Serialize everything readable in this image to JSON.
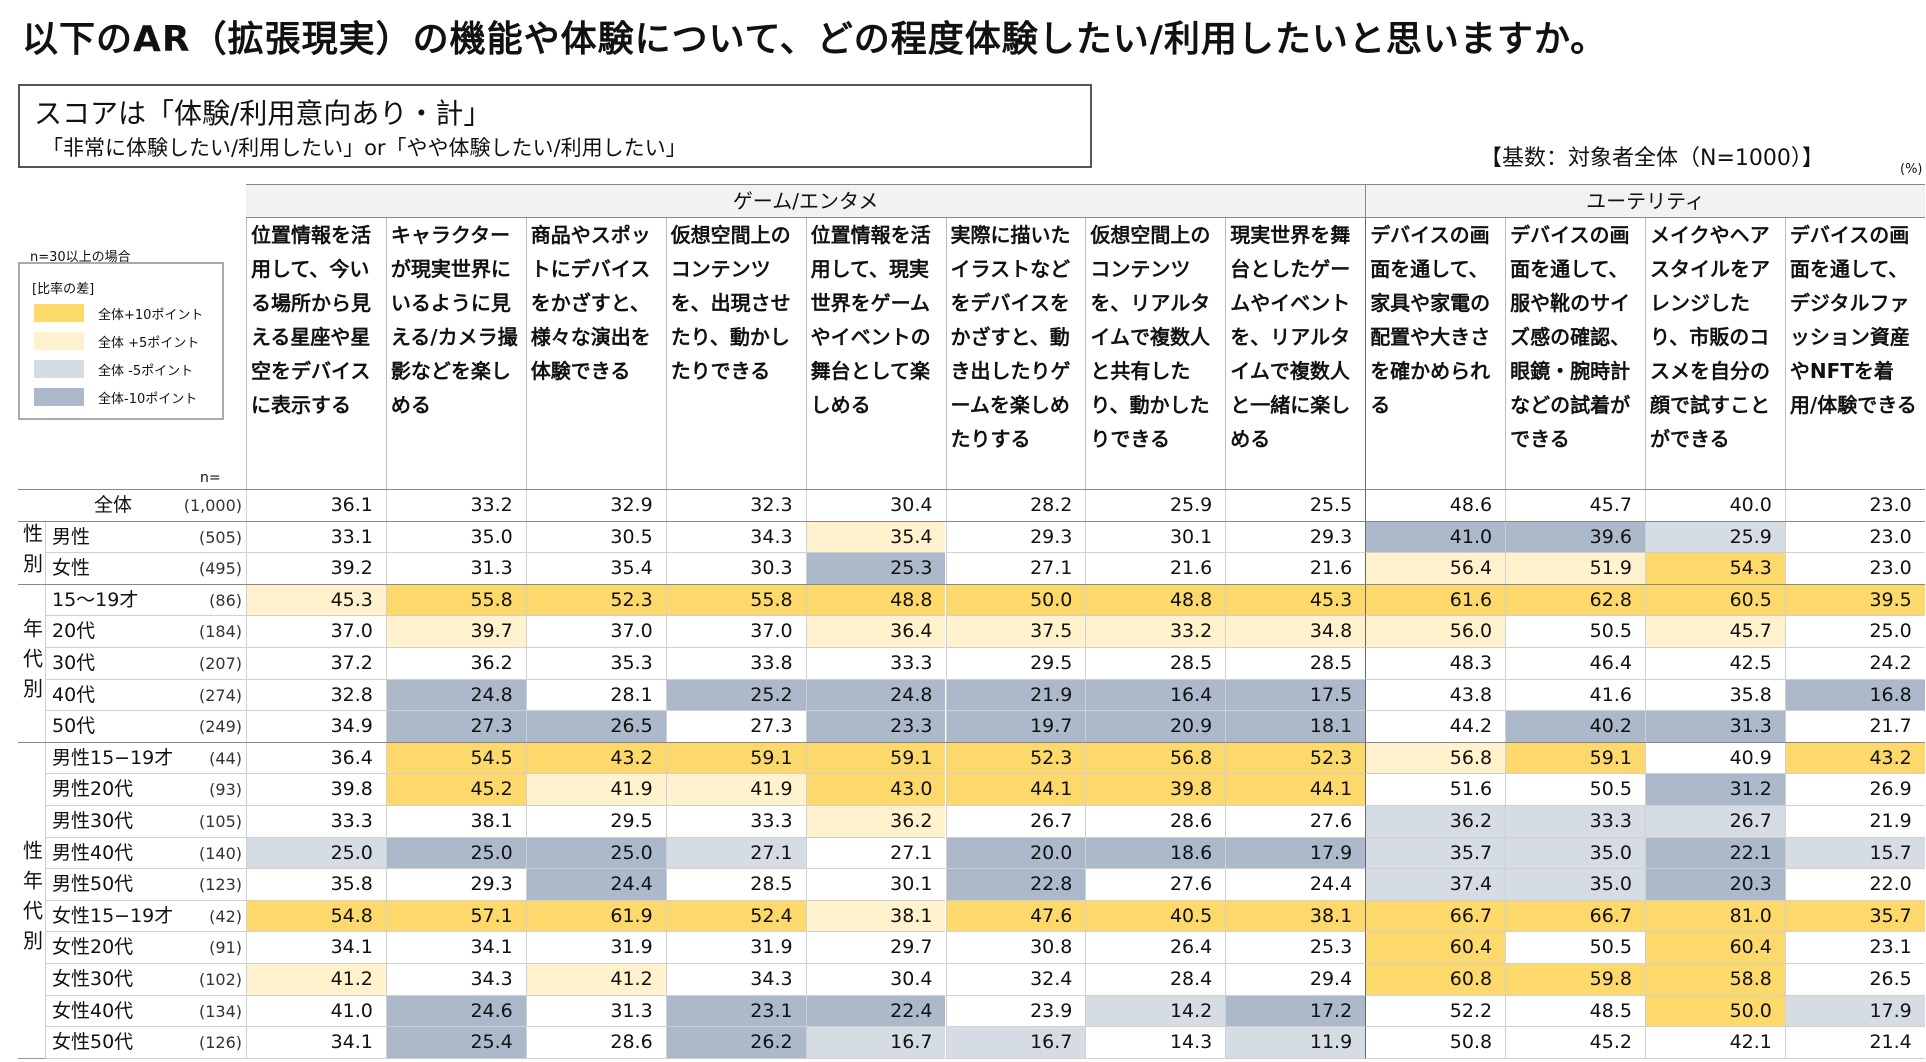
{
  "title": "以下のAR（拡張現実）の機能や体験について、どの程度体験したい/利用したいと思いますか。",
  "score_box": {
    "line1": "スコアは「体験/利用意向あり・計」",
    "line2": "「非常に体験したい/利用したい」or「やや体験したい/利用したい」"
  },
  "base_note": "【基数：対象者全体（N=1000）】",
  "unit_note": "(%)",
  "legend": {
    "condition": "n=30以上の場合",
    "title": "[比率の差]",
    "items": [
      {
        "label": "全体+10ポイント",
        "color": "#fdd86a"
      },
      {
        "label": "全体 +5ポイント",
        "color": "#fff2cc"
      },
      {
        "label": "全体 -5ポイント",
        "color": "#d6dce4"
      },
      {
        "label": "全体-10ポイント",
        "color": "#acb9ca"
      }
    ]
  },
  "n_label": "n=",
  "groups": [
    {
      "label": "ゲーム/エンタメ",
      "span": 8
    },
    {
      "label": "ユーテリティ",
      "span": 4
    }
  ],
  "columns": [
    "位置情報を活用して、今いる場所から見える星座や星空をデバイスに表示する",
    "キャラクターが現実世界にいるように見える/カメラ撮影などを楽しめる",
    "商品やスポットにデバイスをかざすと、様々な演出を体験できる",
    "仮想空間上のコンテンツを、出現させたり、動かしたりできる",
    "位置情報を活用して、現実世界をゲームやイベントの舞台として楽しめる",
    "実際に描いたイラストなどをデバイスをかざすと、動き出したりゲームを楽しめたりする",
    "仮想空間上のコンテンツを、リアルタイムで複数人と共有したり、動かしたりできる",
    "現実世界を舞台としたゲームやイベントを、リアルタイムで複数人と一緒に楽しめる",
    "デバイスの画面を通して、家具や家電の配置や大きさを確かめられる",
    "デバイスの画面を通して、服や靴のサイズ感の確認、眼鏡・腕時計などの試着ができる",
    "メイクやヘアスタイルをアレンジしたり、市販のコスメを自分の顔で試すことができる",
    "デバイスの画面を通して、デジタルファッション資産やNFTを着用/体験できる"
  ],
  "segments": [
    {
      "label": "",
      "rows": 1
    },
    {
      "label": "性別",
      "rows": 2
    },
    {
      "label": "年代別",
      "rows": 5
    },
    {
      "label": "性年代別",
      "rows": 10
    }
  ],
  "chart_data": {
    "type": "table",
    "unit": "%",
    "rows": [
      {
        "label": "全体",
        "n": "(1,000)",
        "values": [
          "36.1",
          "33.2",
          "32.9",
          "32.3",
          "30.4",
          "28.2",
          "25.9",
          "25.5",
          "48.6",
          "45.7",
          "40.0",
          "23.0"
        ],
        "hl": [
          0,
          0,
          0,
          0,
          0,
          0,
          0,
          0,
          0,
          0,
          0,
          0
        ]
      },
      {
        "label": "男性",
        "n": "(505)",
        "values": [
          "33.1",
          "35.0",
          "30.5",
          "34.3",
          "35.4",
          "29.3",
          "30.1",
          "29.3",
          "41.0",
          "39.6",
          "25.9",
          "23.0"
        ],
        "hl": [
          0,
          0,
          0,
          0,
          2,
          0,
          0,
          0,
          -2,
          -2,
          -1,
          0
        ]
      },
      {
        "label": "女性",
        "n": "(495)",
        "values": [
          "39.2",
          "31.3",
          "35.4",
          "30.3",
          "25.3",
          "27.1",
          "21.6",
          "21.6",
          "56.4",
          "51.9",
          "54.3",
          "23.0"
        ],
        "hl": [
          0,
          0,
          0,
          0,
          -2,
          0,
          0,
          0,
          2,
          2,
          1,
          0
        ]
      },
      {
        "label": "15～19才",
        "n": "(86)",
        "values": [
          "45.3",
          "55.8",
          "52.3",
          "55.8",
          "48.8",
          "50.0",
          "48.8",
          "45.3",
          "61.6",
          "62.8",
          "60.5",
          "39.5"
        ],
        "hl": [
          2,
          1,
          1,
          1,
          1,
          1,
          1,
          1,
          1,
          1,
          1,
          1
        ]
      },
      {
        "label": "20代",
        "n": "(184)",
        "values": [
          "37.0",
          "39.7",
          "37.0",
          "37.0",
          "36.4",
          "37.5",
          "33.2",
          "34.8",
          "56.0",
          "50.5",
          "45.7",
          "25.0"
        ],
        "hl": [
          0,
          2,
          0,
          0,
          2,
          2,
          2,
          2,
          2,
          0,
          2,
          0
        ]
      },
      {
        "label": "30代",
        "n": "(207)",
        "values": [
          "37.2",
          "36.2",
          "35.3",
          "33.8",
          "33.3",
          "29.5",
          "28.5",
          "28.5",
          "48.3",
          "46.4",
          "42.5",
          "24.2"
        ],
        "hl": [
          0,
          0,
          0,
          0,
          0,
          0,
          0,
          0,
          0,
          0,
          0,
          0
        ]
      },
      {
        "label": "40代",
        "n": "(274)",
        "values": [
          "32.8",
          "24.8",
          "28.1",
          "25.2",
          "24.8",
          "21.9",
          "16.4",
          "17.5",
          "43.8",
          "41.6",
          "35.8",
          "16.8"
        ],
        "hl": [
          0,
          -2,
          0,
          -2,
          -2,
          -2,
          -2,
          -2,
          0,
          0,
          0,
          -2
        ]
      },
      {
        "label": "50代",
        "n": "(249)",
        "values": [
          "34.9",
          "27.3",
          "26.5",
          "27.3",
          "23.3",
          "19.7",
          "20.9",
          "18.1",
          "44.2",
          "40.2",
          "31.3",
          "21.7"
        ],
        "hl": [
          0,
          -2,
          -2,
          0,
          -2,
          -2,
          -2,
          -2,
          0,
          -2,
          -2,
          0
        ]
      },
      {
        "label": "男性15−19才",
        "n": "(44)",
        "values": [
          "36.4",
          "54.5",
          "43.2",
          "59.1",
          "59.1",
          "52.3",
          "56.8",
          "52.3",
          "56.8",
          "59.1",
          "40.9",
          "43.2"
        ],
        "hl": [
          0,
          1,
          1,
          1,
          1,
          1,
          1,
          1,
          2,
          1,
          0,
          1
        ]
      },
      {
        "label": "男性20代",
        "n": "(93)",
        "values": [
          "39.8",
          "45.2",
          "41.9",
          "41.9",
          "43.0",
          "44.1",
          "39.8",
          "44.1",
          "51.6",
          "50.5",
          "31.2",
          "26.9"
        ],
        "hl": [
          0,
          1,
          2,
          2,
          1,
          1,
          1,
          1,
          0,
          0,
          -2,
          0
        ]
      },
      {
        "label": "男性30代",
        "n": "(105)",
        "values": [
          "33.3",
          "38.1",
          "29.5",
          "33.3",
          "36.2",
          "26.7",
          "28.6",
          "27.6",
          "36.2",
          "33.3",
          "26.7",
          "21.9"
        ],
        "hl": [
          0,
          0,
          0,
          0,
          2,
          0,
          0,
          0,
          -1,
          -1,
          -1,
          0
        ]
      },
      {
        "label": "男性40代",
        "n": "(140)",
        "values": [
          "25.0",
          "25.0",
          "25.0",
          "27.1",
          "27.1",
          "20.0",
          "18.6",
          "17.9",
          "35.7",
          "35.0",
          "22.1",
          "15.7"
        ],
        "hl": [
          -1,
          -2,
          -2,
          -1,
          0,
          -2,
          -2,
          -2,
          -1,
          -1,
          -2,
          -1
        ]
      },
      {
        "label": "男性50代",
        "n": "(123)",
        "values": [
          "35.8",
          "29.3",
          "24.4",
          "28.5",
          "30.1",
          "22.8",
          "27.6",
          "24.4",
          "37.4",
          "35.0",
          "20.3",
          "22.0"
        ],
        "hl": [
          0,
          0,
          -2,
          0,
          0,
          -2,
          0,
          0,
          -1,
          -1,
          -2,
          0
        ]
      },
      {
        "label": "女性15−19才",
        "n": "(42)",
        "values": [
          "54.8",
          "57.1",
          "61.9",
          "52.4",
          "38.1",
          "47.6",
          "40.5",
          "38.1",
          "66.7",
          "66.7",
          "81.0",
          "35.7"
        ],
        "hl": [
          1,
          1,
          1,
          1,
          2,
          1,
          1,
          1,
          1,
          1,
          1,
          1
        ]
      },
      {
        "label": "女性20代",
        "n": "(91)",
        "values": [
          "34.1",
          "34.1",
          "31.9",
          "31.9",
          "29.7",
          "30.8",
          "26.4",
          "25.3",
          "60.4",
          "50.5",
          "60.4",
          "23.1"
        ],
        "hl": [
          0,
          0,
          0,
          0,
          0,
          0,
          0,
          0,
          1,
          0,
          1,
          0
        ]
      },
      {
        "label": "女性30代",
        "n": "(102)",
        "values": [
          "41.2",
          "34.3",
          "41.2",
          "34.3",
          "30.4",
          "32.4",
          "28.4",
          "29.4",
          "60.8",
          "59.8",
          "58.8",
          "26.5"
        ],
        "hl": [
          2,
          0,
          2,
          0,
          0,
          0,
          0,
          0,
          1,
          1,
          1,
          0
        ]
      },
      {
        "label": "女性40代",
        "n": "(134)",
        "values": [
          "41.0",
          "24.6",
          "31.3",
          "23.1",
          "22.4",
          "23.9",
          "14.2",
          "17.2",
          "52.2",
          "48.5",
          "50.0",
          "17.9"
        ],
        "hl": [
          0,
          -2,
          0,
          -2,
          -2,
          0,
          -1,
          -2,
          0,
          0,
          1,
          -1
        ]
      },
      {
        "label": "女性50代",
        "n": "(126)",
        "values": [
          "34.1",
          "25.4",
          "28.6",
          "26.2",
          "16.7",
          "16.7",
          "14.3",
          "11.9",
          "50.8",
          "45.2",
          "42.1",
          "21.4"
        ],
        "hl": [
          0,
          -2,
          0,
          -2,
          -1,
          -1,
          0,
          -1,
          0,
          0,
          0,
          0
        ]
      }
    ]
  }
}
